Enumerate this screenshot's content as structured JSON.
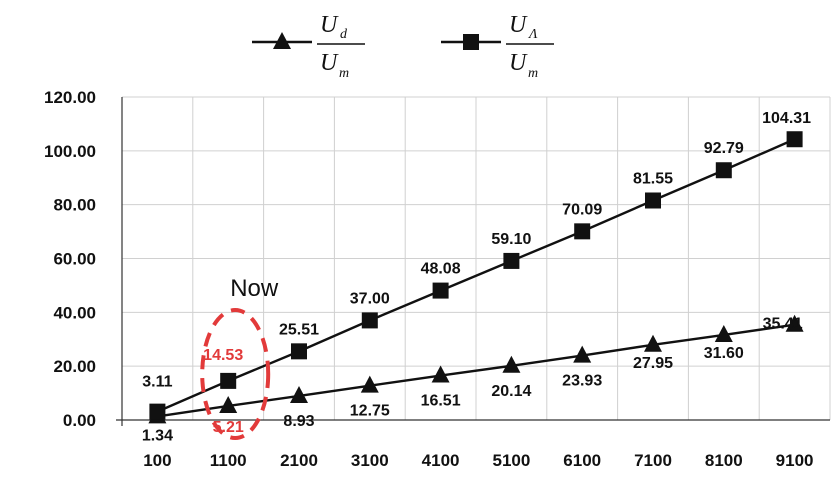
{
  "chart_data": {
    "type": "line",
    "categories": [
      "100",
      "1100",
      "2100",
      "3100",
      "4100",
      "5100",
      "6100",
      "7100",
      "8100",
      "9100"
    ],
    "series": [
      {
        "legend_num_main": "U",
        "legend_num_sub": "d",
        "legend_den_main": "U",
        "legend_den_sub": "m",
        "marker": "triangle",
        "values": [
          1.34,
          5.21,
          8.93,
          12.75,
          16.51,
          20.14,
          23.93,
          27.95,
          31.6,
          35.41
        ],
        "labels": [
          "1.34",
          "5.21",
          "8.93",
          "12.75",
          "16.51",
          "20.14",
          "23.93",
          "27.95",
          "31.60",
          "35.41"
        ]
      },
      {
        "legend_num_main": "U",
        "legend_num_sub": "Λ",
        "legend_den_main": "U",
        "legend_den_sub": "m",
        "marker": "square",
        "values": [
          3.11,
          14.53,
          25.51,
          37.0,
          48.08,
          59.1,
          70.09,
          81.55,
          92.79,
          104.31
        ],
        "labels": [
          "3.11",
          "14.53",
          "25.51",
          "37.00",
          "48.08",
          "59.10",
          "70.09",
          "81.55",
          "92.79",
          "104.31"
        ]
      }
    ],
    "ylim": [
      0,
      120
    ],
    "yticks": [
      "0.00",
      "20.00",
      "40.00",
      "60.00",
      "80.00",
      "100.00",
      "120.00"
    ],
    "grid": true,
    "legend": "top",
    "annotation": {
      "text": "Now",
      "category_index": 1
    },
    "colors": {
      "line": "#111111",
      "highlight": "#e23a3a",
      "grid": "#d0d0d0"
    }
  }
}
